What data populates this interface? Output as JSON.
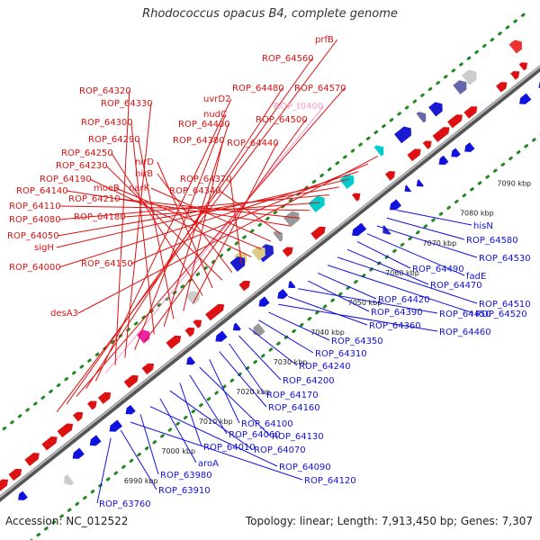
{
  "title": "Rhodococcus opacus B4, complete genome",
  "footer": {
    "accession": "Accession: NC_012522",
    "summary": "Topology: linear; Length: 7,913,450 bp; Genes: 7,307"
  },
  "colors": {
    "forward": "#dd1111",
    "reverse": "#1111dd",
    "rna": "#ff99cc",
    "axis": "#777777",
    "dots": "#228822"
  },
  "scale_labels": [
    "6990 kbp",
    "7000 kbp",
    "7010 kbp",
    "7020 kbp",
    "7030 kbp",
    "7040 kbp",
    "7050 kbp",
    "7060 kbp",
    "7070 kbp",
    "7080 kbp",
    "7090 kbp"
  ],
  "top_genes": [
    "prfB",
    "ROP_64560",
    "ROP_64570",
    "ROP_64480",
    "uvrD2",
    "ROP_t0400",
    "ROP_64320",
    "ROP_64330",
    "nudC",
    "ROP_64500",
    "ROP_64300",
    "ROP_64400",
    "ROP_64290",
    "ROP_64380",
    "ROP_64440",
    "ROP_64250",
    "nirD",
    "ROP_64230",
    "nirB",
    "ROP_64370",
    "ROP_64190",
    "moeB",
    "narK",
    "ROP_64340",
    "ROP_64140",
    "ROP_64210",
    "ROP_64110",
    "ROP_64180",
    "ROP_64080",
    "ROP_64050",
    "sigH",
    "ROP_64000",
    "ROP_64150",
    "desA3"
  ],
  "bottom_genes": [
    "hisN",
    "ROP_64580",
    "ROP_64530",
    "fadE",
    "ROP_64490",
    "ROP_64470",
    "ROP_64510",
    "ROP_64520",
    "ROP_64420",
    "ROP_64390",
    "ROP_64450",
    "ROP_64360",
    "ROP_64460",
    "ROP_64350",
    "ROP_64310",
    "ROP_64240",
    "ROP_64200",
    "ROP_64170",
    "ROP_64160",
    "ROP_64100",
    "ROP_64130",
    "ROP_64060",
    "ROP_64010",
    "ROP_64070",
    "aroA",
    "ROP_64090",
    "ROP_63980",
    "ROP_64120",
    "ROP_63910",
    "ROP_63760"
  ]
}
